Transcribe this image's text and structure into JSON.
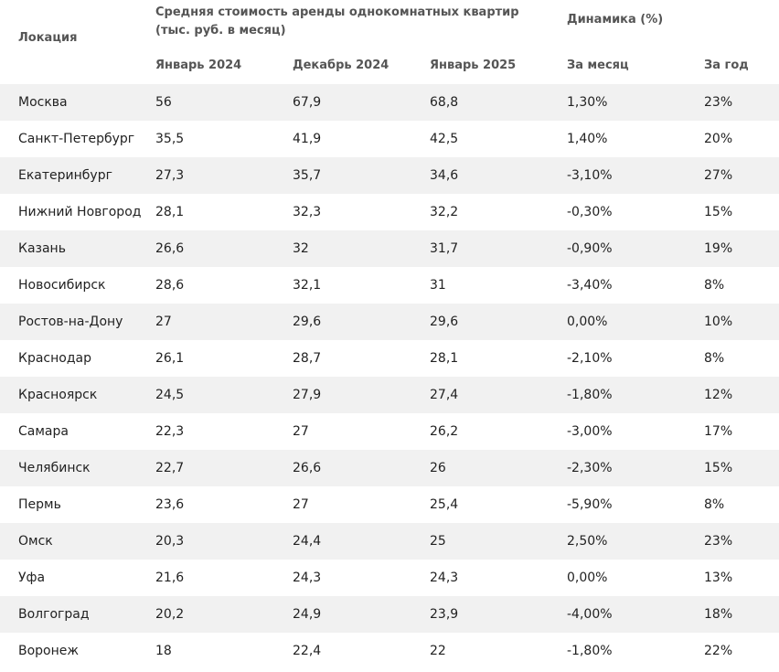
{
  "table": {
    "header": {
      "location": "Локация",
      "group_cost": "Средняя стоимость аренды однокомнатных квартир (тыс. руб. в месяц)",
      "group_dynamics": "Динамика (%)",
      "columns": [
        "Январь 2024",
        "Декабрь 2024",
        "Январь 2025",
        "За месяц",
        "За год"
      ]
    },
    "rows": [
      [
        "Москва",
        "56",
        "67,9",
        "68,8",
        "1,30%",
        "23%"
      ],
      [
        "Санкт-Петербург",
        "35,5",
        "41,9",
        "42,5",
        "1,40%",
        "20%"
      ],
      [
        "Екатеринбург",
        "27,3",
        "35,7",
        "34,6",
        "-3,10%",
        "27%"
      ],
      [
        "Нижний Новгород",
        "28,1",
        "32,3",
        "32,2",
        "-0,30%",
        "15%"
      ],
      [
        "Казань",
        "26,6",
        "32",
        "31,7",
        "-0,90%",
        "19%"
      ],
      [
        "Новосибирск",
        "28,6",
        "32,1",
        "31",
        "-3,40%",
        "8%"
      ],
      [
        "Ростов-на-Дону",
        "27",
        "29,6",
        "29,6",
        "0,00%",
        "10%"
      ],
      [
        "Краснодар",
        "26,1",
        "28,7",
        "28,1",
        "-2,10%",
        "8%"
      ],
      [
        "Красноярск",
        "24,5",
        "27,9",
        "27,4",
        "-1,80%",
        "12%"
      ],
      [
        "Самара",
        "22,3",
        "27",
        "26,2",
        "-3,00%",
        "17%"
      ],
      [
        "Челябинск",
        "22,7",
        "26,6",
        "26",
        "-2,30%",
        "15%"
      ],
      [
        "Пермь",
        "23,6",
        "27",
        "25,4",
        "-5,90%",
        "8%"
      ],
      [
        "Омск",
        "20,3",
        "24,4",
        "25",
        "2,50%",
        "23%"
      ],
      [
        "Уфа",
        "21,6",
        "24,3",
        "24,3",
        "0,00%",
        "13%"
      ],
      [
        "Волгоград",
        "20,2",
        "24,9",
        "23,9",
        "-4,00%",
        "18%"
      ],
      [
        "Воронеж",
        "18",
        "22,4",
        "22",
        "-1,80%",
        "22%"
      ]
    ]
  }
}
